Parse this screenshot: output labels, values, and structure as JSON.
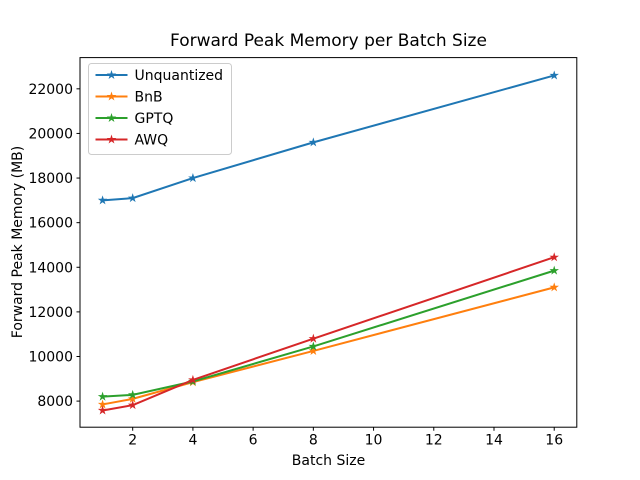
{
  "chart_data": {
    "type": "line",
    "title": "Forward Peak Memory per Batch Size",
    "xlabel": "Batch Size",
    "ylabel": "Forward Peak Memory (MB)",
    "x": [
      1,
      2,
      4,
      8,
      16
    ],
    "series": [
      {
        "name": "Unquantized",
        "color": "#1f77b4",
        "values": [
          17000,
          17100,
          18000,
          19600,
          22600
        ]
      },
      {
        "name": "BnB",
        "color": "#ff7f0e",
        "values": [
          7850,
          8100,
          8850,
          10250,
          13100
        ]
      },
      {
        "name": "GPTQ",
        "color": "#2ca02c",
        "values": [
          8200,
          8280,
          8880,
          10450,
          13850
        ]
      },
      {
        "name": "AWQ",
        "color": "#d62728",
        "values": [
          7580,
          7820,
          8950,
          10800,
          14450
        ]
      }
    ],
    "marker": "star",
    "grid": false,
    "xlim": [
      0.25,
      16.75
    ],
    "ylim": [
      6830,
      23400
    ],
    "x_ticks": [
      2,
      4,
      6,
      8,
      10,
      12,
      14,
      16
    ],
    "y_ticks": [
      8000,
      10000,
      12000,
      14000,
      16000,
      18000,
      20000,
      22000
    ],
    "legend": {
      "position": "upper-left",
      "entries": [
        "Unquantized",
        "BnB",
        "GPTQ",
        "AWQ"
      ],
      "frame_color": "#cccccc",
      "frame_fill": "#ffffff"
    },
    "axis_color": "#000000"
  }
}
